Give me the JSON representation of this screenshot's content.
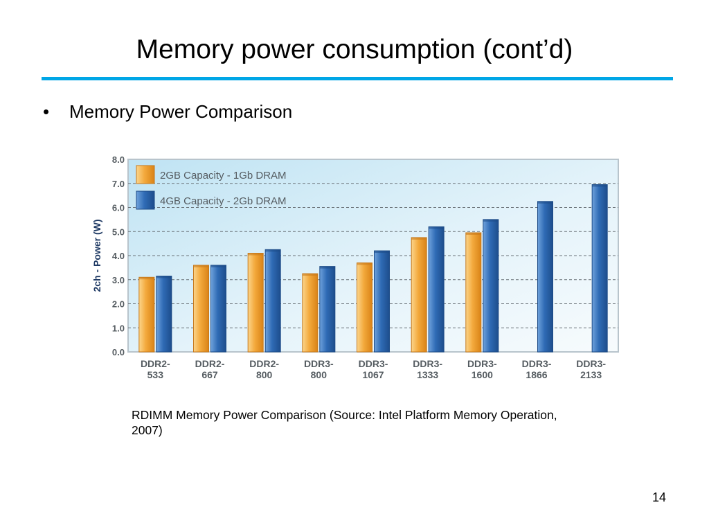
{
  "slide": {
    "title": "Memory power consumption (cont’d)",
    "bullet_symbol": "•",
    "bullet": "Memory Power Comparison",
    "caption": "RDIMM Memory Power Comparison (Source: Intel Platform Memory Operation, 2007)",
    "page_number": "14",
    "accent_color": "#00a6e6"
  },
  "chart_data": {
    "type": "bar",
    "title": "",
    "xlabel": "",
    "ylabel": "2ch - Power (W)",
    "ylim": [
      0,
      8
    ],
    "yticks": [
      "0.0",
      "1.0",
      "2.0",
      "3.0",
      "4.0",
      "5.0",
      "6.0",
      "7.0",
      "8.0"
    ],
    "grid": true,
    "legend_position": "top-left",
    "categories": [
      [
        "DDR2-",
        "533"
      ],
      [
        "DDR2-",
        "667"
      ],
      [
        "DDR2-",
        "800"
      ],
      [
        "DDR3-",
        "800"
      ],
      [
        "DDR3-",
        "1067"
      ],
      [
        "DDR3-",
        "1333"
      ],
      [
        "DDR3-",
        "1600"
      ],
      [
        "DDR3-",
        "1866"
      ],
      [
        "DDR3-",
        "2133"
      ]
    ],
    "series": [
      {
        "name": "2GB Capacity - 1Gb DRAM",
        "color": "#f0a030",
        "values": [
          3.1,
          3.6,
          4.1,
          3.25,
          3.7,
          4.75,
          4.95,
          null,
          null
        ]
      },
      {
        "name": "4GB Capacity - 2Gb DRAM",
        "color": "#2f6bb5",
        "values": [
          3.15,
          3.6,
          4.25,
          3.55,
          4.2,
          5.2,
          5.5,
          6.25,
          6.95
        ]
      }
    ]
  }
}
